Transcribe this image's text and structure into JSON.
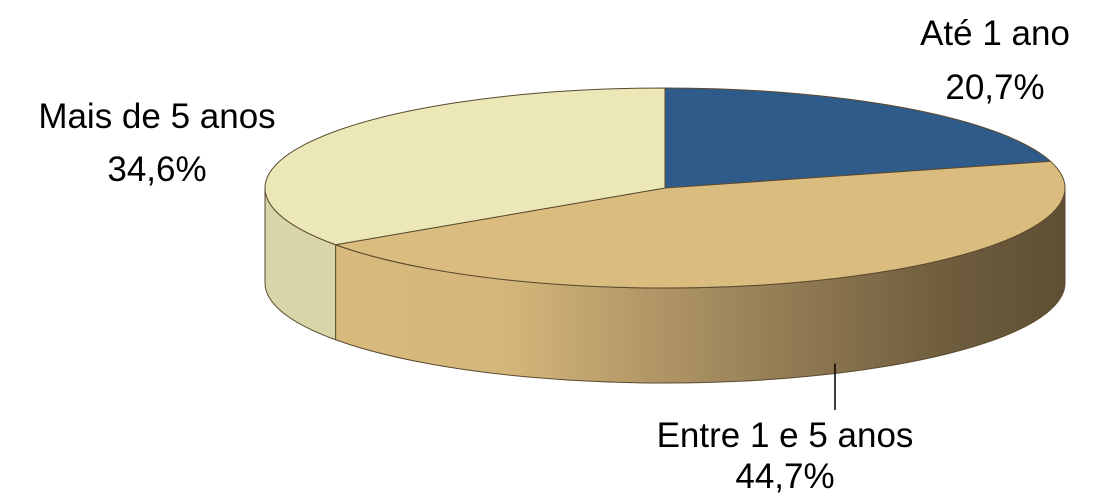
{
  "chart_data": {
    "type": "pie",
    "title": "",
    "slices": [
      {
        "label": "Até 1 ano",
        "value": 20.7,
        "value_label": "20,7%",
        "color": "#2e5b8a"
      },
      {
        "label": "Entre 1 e 5 anos",
        "value": 44.7,
        "value_label": "44,7%",
        "color": "#dbbc7f"
      },
      {
        "label": "Mais de 5 anos",
        "value": 34.6,
        "value_label": "34,6%",
        "color": "#ebe7b7"
      }
    ],
    "style": "3d",
    "legend": "none"
  }
}
